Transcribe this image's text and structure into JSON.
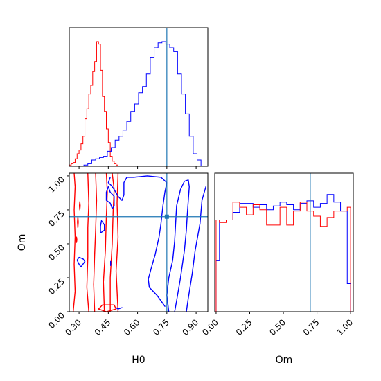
{
  "chart_data": [
    {
      "type": "histogram",
      "panel": "H0 marginal",
      "xlim": [
        0.25,
        0.96
      ],
      "truth": 0.75,
      "series": [
        {
          "color": "#ff0000",
          "bins": [
            0.255,
            0.265,
            0.275,
            0.285,
            0.295,
            0.305,
            0.315,
            0.325,
            0.335,
            0.345,
            0.355,
            0.365,
            0.375,
            0.385,
            0.395,
            0.405,
            0.415,
            0.425,
            0.435,
            0.445,
            0.455,
            0.465,
            0.475,
            0.485,
            0.495,
            0.505
          ],
          "heights": [
            0.01,
            0.02,
            0.03,
            0.06,
            0.1,
            0.13,
            0.18,
            0.24,
            0.38,
            0.46,
            0.58,
            0.65,
            0.76,
            0.84,
            1.0,
            0.98,
            0.77,
            0.56,
            0.44,
            0.3,
            0.19,
            0.08,
            0.04,
            0.02,
            0.01,
            0.0
          ]
        },
        {
          "color": "#0000ff",
          "bins": [
            0.335,
            0.355,
            0.375,
            0.395,
            0.415,
            0.435,
            0.455,
            0.475,
            0.495,
            0.515,
            0.535,
            0.555,
            0.575,
            0.595,
            0.615,
            0.635,
            0.655,
            0.675,
            0.695,
            0.715,
            0.735,
            0.755,
            0.775,
            0.795,
            0.815,
            0.835,
            0.855,
            0.875,
            0.895,
            0.915,
            0.935
          ],
          "heights": [
            0.01,
            0.02,
            0.05,
            0.06,
            0.07,
            0.08,
            0.12,
            0.15,
            0.21,
            0.24,
            0.29,
            0.36,
            0.44,
            0.5,
            0.59,
            0.64,
            0.74,
            0.87,
            0.95,
            0.99,
            1.0,
            0.98,
            0.95,
            0.92,
            0.74,
            0.58,
            0.42,
            0.24,
            0.1,
            0.05,
            0.0
          ]
        }
      ]
    },
    {
      "type": "contour",
      "panel": "H0 vs Om joint",
      "xlabel": "H0",
      "ylabel": "Om",
      "xlim": [
        0.25,
        0.96
      ],
      "ylim": [
        0.0,
        1.02
      ],
      "xticks": [
        "0.30",
        "0.45",
        "0.60",
        "0.75",
        "0.90"
      ],
      "xtick_values": [
        0.3,
        0.45,
        0.6,
        0.75,
        0.9
      ],
      "yticks": [
        "0.00",
        "0.25",
        "0.50",
        "0.75",
        "1.00"
      ],
      "ytick_values": [
        0.0,
        0.25,
        0.5,
        0.75,
        1.0
      ],
      "truth": [
        0.75,
        0.7
      ],
      "series": [
        {
          "color": "#ff0000",
          "contours": [
            [
              [
                0.27,
                0.0
              ],
              [
                0.28,
                0.15
              ],
              [
                0.275,
                0.35
              ],
              [
                0.28,
                0.55
              ],
              [
                0.275,
                0.75
              ],
              [
                0.28,
                0.92
              ],
              [
                0.275,
                1.02
              ]
            ],
            [
              [
                0.35,
                0.0
              ],
              [
                0.34,
                0.18
              ],
              [
                0.345,
                0.4
              ],
              [
                0.345,
                0.62
              ],
              [
                0.35,
                0.8
              ],
              [
                0.345,
                1.02
              ]
            ],
            [
              [
                0.38,
                0.0
              ],
              [
                0.375,
                0.2
              ],
              [
                0.38,
                0.42
              ],
              [
                0.385,
                0.6
              ],
              [
                0.39,
                0.82
              ],
              [
                0.385,
                1.02
              ]
            ],
            [
              [
                0.43,
                0.0
              ],
              [
                0.425,
                0.22
              ],
              [
                0.435,
                0.45
              ],
              [
                0.44,
                0.7
              ],
              [
                0.445,
                0.88
              ],
              [
                0.44,
                1.02
              ]
            ],
            [
              [
                0.46,
                0.0
              ],
              [
                0.46,
                0.25
              ],
              [
                0.47,
                0.5
              ],
              [
                0.475,
                0.75
              ],
              [
                0.48,
                0.9
              ],
              [
                0.47,
                1.02
              ]
            ],
            [
              [
                0.5,
                0.0
              ],
              [
                0.49,
                0.3
              ],
              [
                0.5,
                0.55
              ],
              [
                0.495,
                0.8
              ],
              [
                0.5,
                1.02
              ]
            ],
            [
              [
                0.4,
                0.02
              ],
              [
                0.44,
                0.0
              ],
              [
                0.49,
                0.02
              ],
              [
                0.48,
                0.05
              ],
              [
                0.42,
                0.05
              ],
              [
                0.4,
                0.02
              ]
            ],
            [
              [
                0.302,
                0.78
              ],
              [
                0.304,
                0.75
              ],
              [
                0.306,
                0.78
              ],
              [
                0.304,
                0.81
              ],
              [
                0.302,
                0.78
              ]
            ],
            [
              [
                0.292,
                0.66
              ],
              [
                0.294,
                0.62
              ],
              [
                0.296,
                0.66
              ],
              [
                0.294,
                0.7
              ],
              [
                0.292,
                0.66
              ]
            ],
            [
              [
                0.285,
                0.53
              ],
              [
                0.287,
                0.51
              ],
              [
                0.289,
                0.53
              ],
              [
                0.287,
                0.55
              ],
              [
                0.285,
                0.53
              ]
            ]
          ]
        },
        {
          "color": "#0000ff",
          "contours": [
            [
              [
                0.95,
                0.92
              ],
              [
                0.93,
                0.82
              ],
              [
                0.92,
                0.65
              ],
              [
                0.895,
                0.45
              ],
              [
                0.88,
                0.28
              ],
              [
                0.86,
                0.1
              ],
              [
                0.85,
                0.0
              ]
            ],
            [
              [
                0.79,
                0.0
              ],
              [
                0.8,
                0.08
              ],
              [
                0.82,
                0.25
              ],
              [
                0.84,
                0.45
              ],
              [
                0.85,
                0.6
              ],
              [
                0.855,
                0.72
              ],
              [
                0.86,
                0.82
              ],
              [
                0.865,
                0.92
              ],
              [
                0.86,
                0.97
              ],
              [
                0.84,
                0.96
              ],
              [
                0.82,
                0.9
              ],
              [
                0.8,
                0.78
              ],
              [
                0.795,
                0.65
              ],
              [
                0.79,
                0.52
              ],
              [
                0.78,
                0.38
              ],
              [
                0.76,
                0.25
              ],
              [
                0.75,
                0.12
              ],
              [
                0.76,
                0.0
              ]
            ],
            [
              [
                0.74,
                0.04
              ],
              [
                0.7,
                0.12
              ],
              [
                0.66,
                0.18
              ],
              [
                0.655,
                0.24
              ],
              [
                0.67,
                0.32
              ],
              [
                0.69,
                0.42
              ],
              [
                0.71,
                0.55
              ],
              [
                0.72,
                0.65
              ],
              [
                0.73,
                0.78
              ],
              [
                0.74,
                0.88
              ],
              [
                0.75,
                0.95
              ],
              [
                0.72,
                0.99
              ],
              [
                0.65,
                1.0
              ],
              [
                0.58,
                0.99
              ],
              [
                0.545,
                0.99
              ],
              [
                0.53,
                0.95
              ],
              [
                0.53,
                0.86
              ],
              [
                0.52,
                0.82
              ],
              [
                0.5,
                0.85
              ],
              [
                0.48,
                0.9
              ],
              [
                0.465,
                0.93
              ],
              [
                0.45,
                0.95
              ],
              [
                0.46,
                0.99
              ]
            ],
            [
              [
                0.48,
                0.85
              ],
              [
                0.46,
                0.88
              ],
              [
                0.45,
                0.92
              ],
              [
                0.44,
                0.88
              ],
              [
                0.44,
                0.82
              ],
              [
                0.46,
                0.8
              ],
              [
                0.47,
                0.76
              ],
              [
                0.48,
                0.78
              ],
              [
                0.48,
                0.85
              ]
            ],
            [
              [
                0.43,
                0.64
              ],
              [
                0.415,
                0.67
              ],
              [
                0.41,
                0.63
              ],
              [
                0.41,
                0.58
              ],
              [
                0.43,
                0.6
              ],
              [
                0.43,
                0.64
              ]
            ],
            [
              [
                0.29,
                0.38
              ],
              [
                0.3,
                0.4
              ],
              [
                0.32,
                0.39
              ],
              [
                0.33,
                0.37
              ],
              [
                0.32,
                0.35
              ],
              [
                0.31,
                0.33
              ],
              [
                0.3,
                0.35
              ],
              [
                0.29,
                0.38
              ]
            ],
            [
              [
                0.462,
                0.34
              ],
              [
                0.462,
                0.37
              ]
            ],
            [
              [
                0.52,
                0.03
              ],
              [
                0.5,
                0.02
              ],
              [
                0.49,
                0.03
              ]
            ]
          ]
        }
      ]
    },
    {
      "type": "histogram",
      "panel": "Om marginal",
      "xlabel": "Om",
      "xlim": [
        -0.01,
        1.02
      ],
      "xticks": [
        "0.00",
        "0.25",
        "0.50",
        "0.75",
        "1.00"
      ],
      "xtick_values": [
        0.0,
        0.25,
        0.5,
        0.75,
        1.0
      ],
      "truth": 0.7,
      "series": [
        {
          "color": "#0000ff",
          "edges": [
            0.0,
            0.025,
            0.075,
            0.125,
            0.175,
            0.225,
            0.275,
            0.325,
            0.375,
            0.425,
            0.475,
            0.525,
            0.575,
            0.625,
            0.675,
            0.725,
            0.775,
            0.825,
            0.875,
            0.925,
            0.975,
            1.0
          ],
          "heights": [
            0.4,
            0.72,
            0.72,
            0.78,
            0.85,
            0.85,
            0.82,
            0.84,
            0.8,
            0.83,
            0.86,
            0.84,
            0.8,
            0.85,
            0.87,
            0.82,
            0.85,
            0.92,
            0.86,
            0.79,
            0.22
          ]
        },
        {
          "color": "#ff0000",
          "edges": [
            0.0,
            0.025,
            0.075,
            0.125,
            0.175,
            0.225,
            0.275,
            0.325,
            0.375,
            0.425,
            0.475,
            0.525,
            0.575,
            0.625,
            0.675,
            0.725,
            0.775,
            0.825,
            0.875,
            0.925,
            0.975,
            1.0
          ],
          "heights": [
            0.72,
            0.7,
            0.72,
            0.86,
            0.82,
            0.76,
            0.84,
            0.8,
            0.68,
            0.68,
            0.82,
            0.68,
            0.79,
            0.86,
            0.79,
            0.75,
            0.67,
            0.74,
            0.79,
            0.79,
            0.82
          ]
        }
      ]
    }
  ]
}
